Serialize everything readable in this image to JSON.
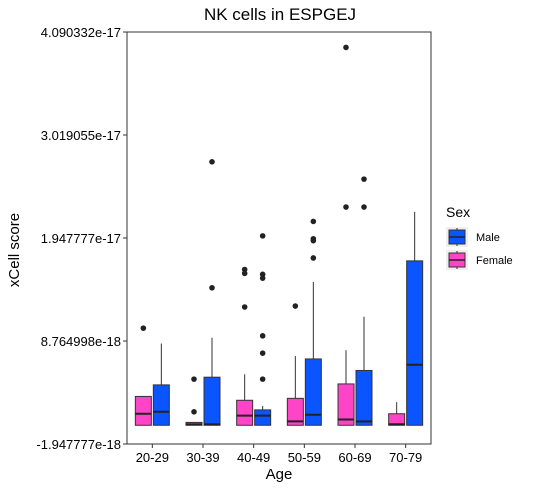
{
  "chart_data": {
    "type": "box",
    "title": "NK cells in ESPGEJ",
    "xlabel": "Age",
    "ylabel": "xCell score",
    "categories": [
      "20-29",
      "30-39",
      "40-49",
      "50-59",
      "60-69",
      "70-79"
    ],
    "y_ticks": [
      -1.947777e-18,
      8.764998e-18,
      1.947777e-17,
      3.019055e-17,
      4.090332e-17
    ],
    "y_tick_labels": [
      "-1.947777e-18",
      "8.764998e-18",
      "1.947777e-17",
      "3.019055e-17",
      "4.090332e-17"
    ],
    "ylim": [
      -1.947777e-18,
      4.090332e-17
    ],
    "grid": false,
    "legend": {
      "title": "Sex",
      "placement": "right",
      "entries": [
        {
          "label": "Male",
          "color": "#0a55ff"
        },
        {
          "label": "Female",
          "color": "#ff44c8"
        }
      ]
    },
    "series": [
      {
        "name": "Female",
        "color": "#ff44c8",
        "boxes": [
          {
            "category": "20-29",
            "low": 0.0,
            "q1": 0.0,
            "median": 1.2e-18,
            "q3": 3e-18,
            "high": 3e-18,
            "outliers": [
              1.01e-17
            ]
          },
          {
            "category": "30-39",
            "low": 0.0,
            "q1": 0.0,
            "median": 1e-19,
            "q3": 3e-19,
            "high": 3e-19,
            "outliers": [
              1.4e-18,
              4.8e-18
            ]
          },
          {
            "category": "40-49",
            "low": 0.0,
            "q1": 0.0,
            "median": 1e-18,
            "q3": 2.6e-18,
            "high": 5.3e-18,
            "outliers": [
              1.23e-17,
              1.58e-17,
              1.62e-17
            ]
          },
          {
            "category": "50-59",
            "low": 0.0,
            "q1": 0.0,
            "median": 4e-19,
            "q3": 2.8e-18,
            "high": 7.2e-18,
            "outliers": [
              1.24e-17
            ]
          },
          {
            "category": "60-69",
            "low": 0.0,
            "q1": 0.0,
            "median": 6e-19,
            "q3": 4.3e-18,
            "high": 7.8e-18,
            "outliers": [
              2.27e-17,
              3.93e-17
            ]
          },
          {
            "category": "70-79",
            "low": 0.0,
            "q1": 0.0,
            "median": 1e-19,
            "q3": 1.2e-18,
            "high": 2.4e-18,
            "outliers": []
          }
        ]
      },
      {
        "name": "Male",
        "color": "#0a55ff",
        "boxes": [
          {
            "category": "20-29",
            "low": 0.0,
            "q1": 0.0,
            "median": 1.4e-18,
            "q3": 4.2e-18,
            "high": 8.5e-18,
            "outliers": []
          },
          {
            "category": "30-39",
            "low": 0.0,
            "q1": 0.0,
            "median": 1e-19,
            "q3": 5e-18,
            "high": 9.1e-18,
            "outliers": [
              1.43e-17,
              2.74e-17
            ]
          },
          {
            "category": "40-49",
            "low": 0.0,
            "q1": 0.0,
            "median": 1e-18,
            "q3": 1.6e-18,
            "high": 2e-18,
            "outliers": [
              4.8e-18,
              7.5e-18,
              9.3e-18,
              1.53e-17,
              1.57e-17,
              1.97e-17
            ]
          },
          {
            "category": "50-59",
            "low": 0.0,
            "q1": 0.0,
            "median": 1.1e-18,
            "q3": 6.9e-18,
            "high": 1.49e-17,
            "outliers": [
              1.74e-17,
              1.92e-17,
              1.94e-17,
              2.12e-17
            ]
          },
          {
            "category": "60-69",
            "low": 0.0,
            "q1": 0.0,
            "median": 4e-19,
            "q3": 5.7e-18,
            "high": 1.13e-17,
            "outliers": [
              2.27e-17,
              2.56e-17
            ]
          },
          {
            "category": "70-79",
            "low": 0.0,
            "q1": 0.0,
            "median": 6.3e-18,
            "q3": 1.71e-17,
            "high": 2.22e-17,
            "outliers": []
          }
        ]
      }
    ]
  }
}
